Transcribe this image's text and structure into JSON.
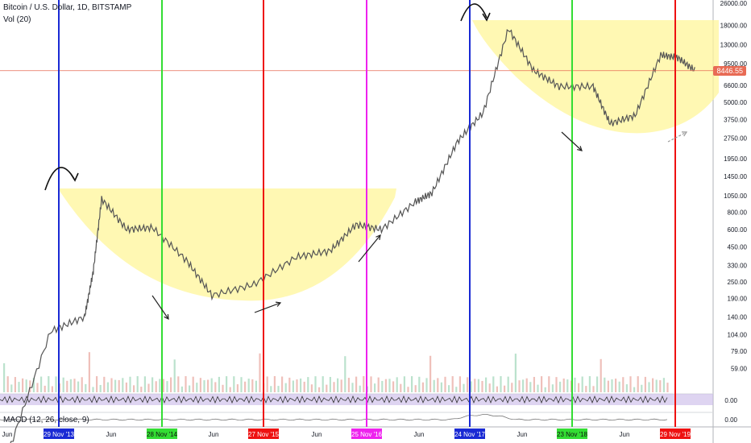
{
  "header": {
    "symbol": "Bitcoin / U.S. Dollar, 1D, BITSTAMP",
    "volume": "Vol (20)",
    "macd": "MACD (12, 26, close, 9)"
  },
  "current_price": "8446.55",
  "chart_data": {
    "type": "line",
    "title": "Bitcoin / U.S. Dollar, 1D, BITSTAMP",
    "y_scale": "log",
    "y_ticks": [
      "26000.00",
      "18000.00",
      "13000.00",
      "9500.00",
      "6600.00",
      "5000.00",
      "3750.00",
      "2750.00",
      "1950.00",
      "1450.00",
      "1050.00",
      "800.00",
      "600.00",
      "450.00",
      "330.00",
      "250.00",
      "190.00",
      "140.00",
      "104.00",
      "79.00",
      "59.00"
    ],
    "sub_ticks": [
      "0.00",
      "0.00"
    ],
    "x_ticks": [
      "Jun",
      "Jun",
      "Jun",
      "Jun",
      "Jun",
      "Jun",
      "Jun"
    ],
    "series": [
      {
        "x": [
          "2013-01",
          "2013-06",
          "2013-10",
          "2013-11",
          "2013-12",
          "2014-03",
          "2014-06",
          "2014-10",
          "2015-01",
          "2015-06",
          "2015-11",
          "2016-03",
          "2016-06",
          "2016-09",
          "2017-01",
          "2017-03",
          "2017-06",
          "2017-09",
          "2017-12",
          "2018-03",
          "2018-06",
          "2018-10",
          "2018-12",
          "2019-03",
          "2019-06",
          "2019-08",
          "2019-10"
        ],
        "y": [
          15,
          110,
          140,
          300,
          1000,
          600,
          620,
          360,
          200,
          240,
          380,
          420,
          650,
          600,
          950,
          1100,
          2600,
          4200,
          17000,
          8500,
          6500,
          6500,
          3500,
          4000,
          11000,
          10500,
          8500
        ]
      }
    ],
    "markers": [
      {
        "label": "29 Nov '13",
        "color": "#1a2ad4"
      },
      {
        "label": "28 Nov '14",
        "color": "#33dd33"
      },
      {
        "label": "27 Nov '15",
        "color": "#ee1111"
      },
      {
        "label": "25 Nov '16",
        "color": "#ee22ee"
      },
      {
        "label": "24 Nov '17",
        "color": "#1a2ad4"
      },
      {
        "label": "23 Nov '18",
        "color": "#33dd33"
      },
      {
        "label": "29 Nov '19",
        "color": "#ee1111"
      }
    ],
    "colors": {
      "price_line": "#e86b55",
      "cup_fill": "#fff59a",
      "candle": "#555555"
    }
  }
}
